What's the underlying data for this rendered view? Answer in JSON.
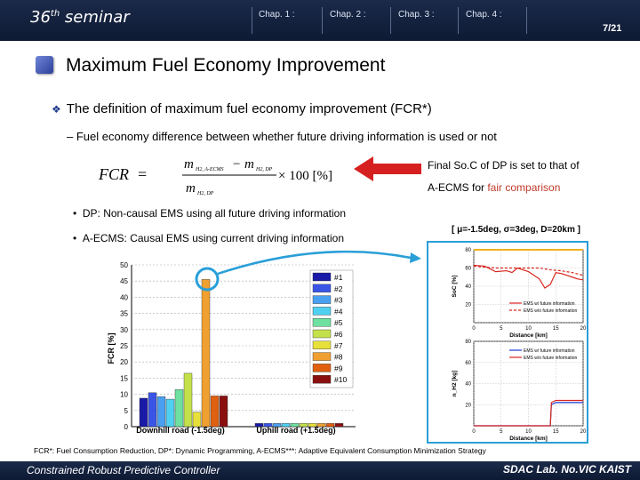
{
  "header": {
    "seminar_number": "36",
    "seminar_suffix": "th",
    "seminar_word": "seminar",
    "chapters": [
      "Chap. 1 :",
      "Chap. 2 :",
      "Chap. 3 :",
      "Chap. 4 :"
    ],
    "page": "7/21"
  },
  "title": "Maximum Fuel Economy Improvement",
  "bullet": "The definition of maximum fuel economy improvement (FCR*)",
  "sub_bullet": "– Fuel economy difference between whether future driving information is used or not",
  "formula": {
    "lhs": "FCR",
    "num_a": "m",
    "num_a_sub": "H2, A-ECMS",
    "num_b": "m",
    "num_b_sub": "H2, DP",
    "den": "m",
    "den_sub": "H2, DP",
    "factor": "× 100 [%]"
  },
  "note": {
    "line1": "Final So.C of DP is set to that of",
    "line2_prefix": "A-ECMS for ",
    "line2_red": "fair comparison"
  },
  "items": [
    "DP: Non-causal EMS using all future driving information",
    "A-ECMS: Causal EMS using current driving information"
  ],
  "params": "[ μ=-1.5deg, σ=3deg, D=20km ]",
  "footnote": "FCR*: Fuel Consumption Reduction, DP*: Dynamic Programming, A-ECMS***: Adaptive Equivalent Consumption Minimization Strategy",
  "footer": {
    "left": "Constrained Robust Predictive Controller",
    "right": "SDAC Lab. No.VIC KAIST"
  },
  "colors": {
    "header_bg": "#162544",
    "highlight_ring": "#2a9fd8",
    "arrow_red": "#d62020"
  },
  "chart_data": [
    {
      "type": "bar",
      "ylabel": "FCR [%]",
      "ylim": [
        0,
        50
      ],
      "yticks": [
        0,
        5,
        10,
        15,
        20,
        25,
        30,
        35,
        40,
        45,
        50
      ],
      "categories": [
        "Downhill road (-1.5deg)",
        "Uphill road (+1.5deg)"
      ],
      "legend": [
        "#1",
        "#2",
        "#3",
        "#4",
        "#5",
        "#6",
        "#7",
        "#8",
        "#9",
        "#10"
      ],
      "colors": [
        "#1a1aa8",
        "#3a55e6",
        "#4aa0f0",
        "#50d0f0",
        "#6ee0a0",
        "#c4e04a",
        "#e8e03a",
        "#f0a030",
        "#e06010",
        "#8a1010"
      ],
      "series_values": {
        "Downhill road (-1.5deg)": [
          8.8,
          10.5,
          9.3,
          8.5,
          11.5,
          16.5,
          4.5,
          45.5,
          9.5,
          9.5
        ],
        "Uphill road (+1.5deg)": [
          1.0,
          1.0,
          1.0,
          1.0,
          1.0,
          1.0,
          1.0,
          1.0,
          1.0,
          1.0
        ]
      },
      "grid": true,
      "legend_position": "top-right"
    },
    {
      "type": "line",
      "ylabel": "SoC [%]",
      "xlabel": "Distance [km]",
      "xlim": [
        0,
        20
      ],
      "ylim": [
        0,
        80
      ],
      "xticks": [
        0,
        5,
        10,
        15,
        20
      ],
      "yticks": [
        0,
        20,
        40,
        60,
        80
      ],
      "series": [
        {
          "name": "EMS w/ future information",
          "color": "#d8261e",
          "x": [
            0,
            2,
            4,
            6,
            7,
            8,
            9,
            10,
            11,
            12,
            13,
            14,
            15,
            16,
            17,
            18,
            19,
            20
          ],
          "y": [
            63,
            62,
            56,
            57,
            55,
            60,
            58,
            56,
            52,
            48,
            38,
            42,
            55,
            54,
            52,
            50,
            48,
            47
          ]
        },
        {
          "name": "EMS w/o future information",
          "color": "#d8261e",
          "x": [
            0,
            2,
            4,
            6,
            8,
            10,
            12,
            14,
            16,
            18,
            20
          ],
          "y": [
            62,
            61,
            60,
            60,
            60,
            60,
            60,
            58,
            57,
            55,
            52
          ]
        },
        {
          "name": "",
          "color": "#f0b020",
          "x": [
            0,
            20
          ],
          "y": [
            80,
            80
          ]
        }
      ]
    },
    {
      "type": "line",
      "ylabel": "n_H2 [kg]",
      "xlabel": "Distance [km]",
      "xlim": [
        0,
        20
      ],
      "ylim": [
        0,
        80
      ],
      "xticks": [
        0,
        5,
        10,
        15,
        20
      ],
      "yticks": [
        0,
        20,
        40,
        60,
        80
      ],
      "series": [
        {
          "name": "EMS w/ future information",
          "color": "#1a3ad0",
          "x": [
            0,
            14,
            14.2,
            15,
            16,
            20
          ],
          "y": [
            0,
            0,
            20,
            22,
            22,
            22
          ]
        },
        {
          "name": "EMS w/o future information",
          "color": "#d8261e",
          "x": [
            0,
            14,
            14.2,
            15,
            16,
            20
          ],
          "y": [
            0,
            0,
            22,
            24,
            24,
            24
          ]
        }
      ]
    }
  ]
}
